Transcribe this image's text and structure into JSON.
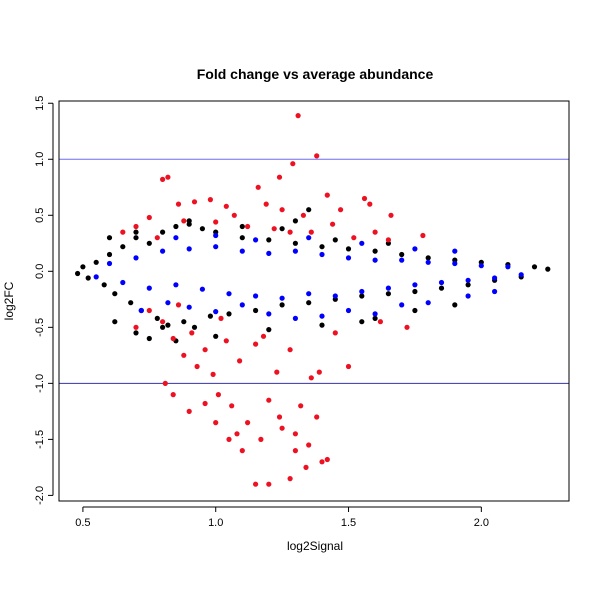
{
  "chart_data": {
    "type": "scatter",
    "title": "Fold change vs average abundance",
    "xlabel": "log2Signal",
    "ylabel": "log2FC",
    "xlim": [
      0.41,
      2.33
    ],
    "ylim": [
      -2.05,
      1.52
    ],
    "x_ticks": [
      "0.5",
      "1.0",
      "1.5",
      "2.0"
    ],
    "y_ticks": [
      "-2.0",
      "-1.5",
      "-1.0",
      "-0.5",
      "0.0",
      "0.5",
      "1.0",
      "1.5"
    ],
    "hlines": [
      {
        "y": 1.0,
        "color": "#6b6bff"
      },
      {
        "y": -1.0,
        "color": "#3333aa"
      }
    ],
    "colors": {
      "black": "#000000",
      "blue": "#0000ff",
      "red": "#ee1122"
    },
    "series": [
      {
        "color_key": "black",
        "points": [
          [
            0.48,
            -0.02
          ],
          [
            0.5,
            0.04
          ],
          [
            0.52,
            -0.06
          ],
          [
            0.55,
            0.08
          ],
          [
            0.58,
            -0.12
          ],
          [
            0.6,
            0.15
          ],
          [
            0.62,
            -0.2
          ],
          [
            0.65,
            0.22
          ],
          [
            0.68,
            -0.28
          ],
          [
            0.7,
            0.3
          ],
          [
            0.72,
            -0.35
          ],
          [
            0.75,
            0.25
          ],
          [
            0.78,
            -0.42
          ],
          [
            0.8,
            0.35
          ],
          [
            0.82,
            -0.48
          ],
          [
            0.85,
            0.4
          ],
          [
            0.88,
            -0.45
          ],
          [
            0.9,
            0.42
          ],
          [
            0.92,
            -0.5
          ],
          [
            0.95,
            0.38
          ],
          [
            0.98,
            -0.4
          ],
          [
            1.0,
            0.35
          ],
          [
            1.05,
            -0.38
          ],
          [
            1.1,
            0.3
          ],
          [
            1.15,
            -0.35
          ],
          [
            1.2,
            0.28
          ],
          [
            1.25,
            -0.3
          ],
          [
            1.3,
            0.25
          ],
          [
            1.35,
            -0.28
          ],
          [
            1.4,
            0.22
          ],
          [
            1.45,
            -0.25
          ],
          [
            1.5,
            0.2
          ],
          [
            1.55,
            -0.22
          ],
          [
            1.6,
            0.18
          ],
          [
            1.65,
            -0.2
          ],
          [
            1.7,
            0.15
          ],
          [
            1.75,
            -0.18
          ],
          [
            1.8,
            0.12
          ],
          [
            1.85,
            -0.15
          ],
          [
            1.9,
            0.1
          ],
          [
            1.95,
            -0.12
          ],
          [
            2.0,
            0.08
          ],
          [
            2.05,
            -0.08
          ],
          [
            2.1,
            0.06
          ],
          [
            2.15,
            -0.05
          ],
          [
            2.2,
            0.04
          ],
          [
            2.25,
            0.02
          ],
          [
            0.62,
            -0.45
          ],
          [
            0.7,
            -0.55
          ],
          [
            0.75,
            -0.6
          ],
          [
            0.8,
            -0.5
          ],
          [
            0.85,
            -0.62
          ],
          [
            1.0,
            -0.58
          ],
          [
            1.2,
            -0.52
          ],
          [
            1.3,
            0.45
          ],
          [
            1.35,
            0.55
          ],
          [
            1.4,
            -0.48
          ],
          [
            1.55,
            -0.45
          ],
          [
            1.6,
            -0.42
          ],
          [
            1.75,
            -0.35
          ],
          [
            1.9,
            -0.3
          ],
          [
            0.6,
            0.3
          ],
          [
            0.7,
            0.35
          ],
          [
            0.9,
            0.45
          ],
          [
            1.1,
            0.4
          ],
          [
            1.25,
            0.38
          ],
          [
            1.45,
            0.28
          ],
          [
            1.65,
            0.25
          ]
        ]
      },
      {
        "color_key": "blue",
        "points": [
          [
            0.55,
            -0.05
          ],
          [
            0.6,
            0.07
          ],
          [
            0.65,
            -0.1
          ],
          [
            0.7,
            0.12
          ],
          [
            0.75,
            -0.15
          ],
          [
            0.8,
            0.18
          ],
          [
            0.85,
            -0.12
          ],
          [
            0.9,
            0.2
          ],
          [
            0.95,
            -0.16
          ],
          [
            1.0,
            0.22
          ],
          [
            1.05,
            -0.2
          ],
          [
            1.1,
            0.18
          ],
          [
            1.15,
            -0.22
          ],
          [
            1.2,
            0.16
          ],
          [
            1.25,
            -0.24
          ],
          [
            1.3,
            0.18
          ],
          [
            1.35,
            -0.2
          ],
          [
            1.4,
            0.15
          ],
          [
            1.45,
            -0.22
          ],
          [
            1.5,
            0.12
          ],
          [
            1.55,
            -0.18
          ],
          [
            1.6,
            0.1
          ],
          [
            1.65,
            -0.15
          ],
          [
            1.7,
            0.1
          ],
          [
            1.75,
            -0.12
          ],
          [
            1.8,
            0.08
          ],
          [
            1.85,
            -0.1
          ],
          [
            1.9,
            0.07
          ],
          [
            1.95,
            -0.08
          ],
          [
            2.0,
            0.05
          ],
          [
            2.05,
            -0.06
          ],
          [
            2.1,
            0.04
          ],
          [
            2.15,
            -0.03
          ],
          [
            0.72,
            -0.35
          ],
          [
            0.82,
            -0.28
          ],
          [
            0.9,
            -0.32
          ],
          [
            1.0,
            -0.36
          ],
          [
            1.1,
            -0.3
          ],
          [
            1.2,
            -0.38
          ],
          [
            1.3,
            -0.42
          ],
          [
            1.4,
            -0.4
          ],
          [
            1.5,
            -0.35
          ],
          [
            1.6,
            -0.38
          ],
          [
            1.7,
            -0.3
          ],
          [
            1.8,
            -0.28
          ],
          [
            1.95,
            -0.22
          ],
          [
            2.05,
            -0.18
          ],
          [
            0.85,
            0.3
          ],
          [
            1.0,
            0.32
          ],
          [
            1.15,
            0.28
          ],
          [
            1.35,
            0.3
          ],
          [
            1.55,
            0.25
          ],
          [
            1.75,
            0.2
          ],
          [
            1.9,
            0.18
          ]
        ]
      },
      {
        "color_key": "red",
        "points": [
          [
            1.31,
            1.39
          ],
          [
            1.38,
            1.03
          ],
          [
            1.29,
            0.96
          ],
          [
            1.42,
            0.68
          ],
          [
            1.16,
            0.75
          ],
          [
            1.24,
            0.84
          ],
          [
            0.8,
            0.82
          ],
          [
            0.82,
            0.84
          ],
          [
            0.92,
            0.62
          ],
          [
            0.98,
            0.64
          ],
          [
            1.04,
            0.58
          ],
          [
            1.19,
            0.6
          ],
          [
            1.25,
            0.55
          ],
          [
            1.47,
            0.55
          ],
          [
            1.56,
            0.65
          ],
          [
            1.58,
            0.6
          ],
          [
            1.66,
            0.5
          ],
          [
            0.75,
            0.48
          ],
          [
            0.88,
            0.45
          ],
          [
            1.0,
            0.44
          ],
          [
            1.12,
            0.4
          ],
          [
            1.22,
            0.38
          ],
          [
            1.36,
            0.35
          ],
          [
            1.52,
            0.3
          ],
          [
            1.65,
            0.28
          ],
          [
            1.78,
            0.32
          ],
          [
            0.7,
            0.4
          ],
          [
            0.65,
            0.35
          ],
          [
            0.78,
            0.3
          ],
          [
            1.28,
            0.35
          ],
          [
            1.44,
            0.42
          ],
          [
            1.6,
            0.35
          ],
          [
            0.86,
            0.6
          ],
          [
            1.07,
            0.5
          ],
          [
            1.33,
            0.5
          ],
          [
            0.75,
            -0.35
          ],
          [
            0.8,
            -0.45
          ],
          [
            0.84,
            -0.6
          ],
          [
            0.88,
            -0.75
          ],
          [
            0.91,
            -0.55
          ],
          [
            0.93,
            -0.85
          ],
          [
            0.96,
            -0.7
          ],
          [
            0.99,
            -0.92
          ],
          [
            1.01,
            -1.1
          ],
          [
            1.04,
            -0.62
          ],
          [
            1.06,
            -1.2
          ],
          [
            1.09,
            -0.8
          ],
          [
            1.12,
            -1.35
          ],
          [
            1.15,
            -0.65
          ],
          [
            1.17,
            -1.5
          ],
          [
            1.2,
            -1.15
          ],
          [
            1.23,
            -0.9
          ],
          [
            1.25,
            -1.4
          ],
          [
            1.28,
            -0.7
          ],
          [
            1.3,
            -1.6
          ],
          [
            1.32,
            -1.2
          ],
          [
            1.34,
            -1.75
          ],
          [
            1.36,
            -0.95
          ],
          [
            1.38,
            -1.3
          ],
          [
            1.4,
            -1.7
          ],
          [
            1.42,
            -1.68
          ],
          [
            0.81,
            -1.0
          ],
          [
            0.84,
            -1.1
          ],
          [
            0.9,
            -1.25
          ],
          [
            1.0,
            -1.35
          ],
          [
            1.05,
            -1.5
          ],
          [
            1.1,
            -1.6
          ],
          [
            1.15,
            -1.9
          ],
          [
            1.2,
            -1.9
          ],
          [
            1.28,
            -1.85
          ],
          [
            1.3,
            -1.45
          ],
          [
            1.35,
            -1.55
          ],
          [
            1.24,
            -1.3
          ],
          [
            1.08,
            -1.45
          ],
          [
            0.96,
            -1.18
          ],
          [
            1.39,
            -0.9
          ],
          [
            1.5,
            -0.85
          ],
          [
            1.62,
            -0.45
          ],
          [
            1.72,
            -0.5
          ],
          [
            1.45,
            -0.55
          ],
          [
            0.7,
            -0.5
          ],
          [
            0.86,
            -0.3
          ],
          [
            1.02,
            -0.42
          ],
          [
            1.18,
            -0.58
          ]
        ]
      }
    ]
  }
}
